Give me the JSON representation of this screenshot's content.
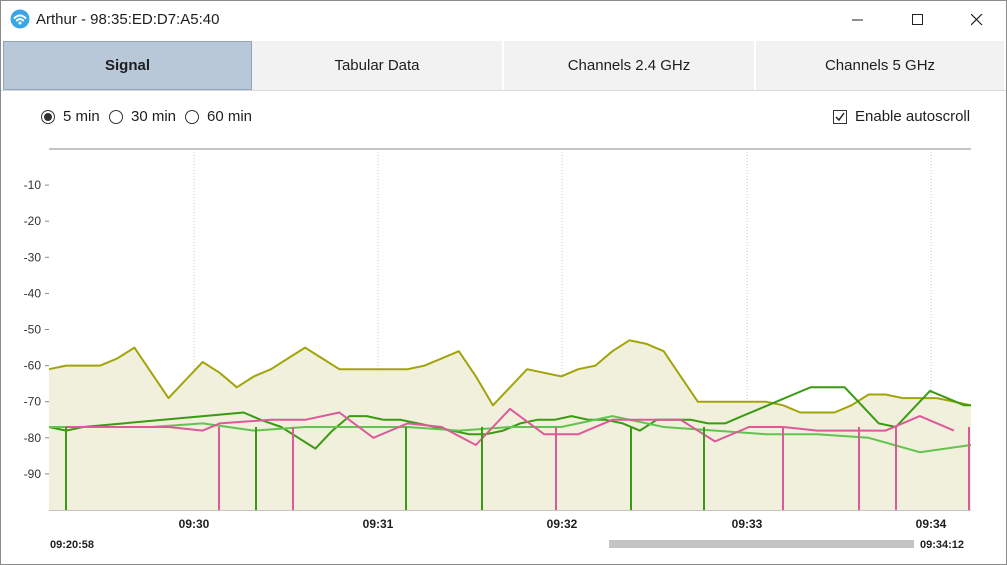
{
  "window": {
    "title": "Arthur - 98:35:ED:D7:A5:40",
    "icon": "wifi-app-icon"
  },
  "tabs": [
    {
      "label": "Signal",
      "active": true
    },
    {
      "label": "Tabular Data",
      "active": false
    },
    {
      "label": "Channels 2.4 GHz",
      "active": false
    },
    {
      "label": "Channels 5 GHz",
      "active": false
    }
  ],
  "time_options": [
    {
      "label": "5 min",
      "selected": true
    },
    {
      "label": "30 min",
      "selected": false
    },
    {
      "label": "60 min",
      "selected": false
    }
  ],
  "autoscroll": {
    "label": "Enable autoscroll",
    "checked": true
  },
  "range": {
    "start": "09:20:58",
    "end": "09:34:12"
  },
  "colors": {
    "tab_active": "#b8c8d8",
    "olive": "#a2a40a",
    "olive_fill": "#f0f0dc",
    "dark_green": "#3a9a12",
    "light_green": "#62c450",
    "pink": "#dc5a9a"
  },
  "chart_data": {
    "type": "line",
    "ylim": [
      -100,
      0
    ],
    "y_ticks": [
      "-10",
      "-20",
      "-30",
      "-40",
      "-50",
      "-60",
      "-70",
      "-80",
      "-90"
    ],
    "x_ticks": [
      "09:30",
      "09:31",
      "09:32",
      "09:33",
      "09:34"
    ],
    "series": [
      {
        "color": "#a2a40a",
        "fill": true,
        "x": [
          0,
          0.5,
          1,
          1.5,
          2,
          2.5,
          3,
          3.5,
          4,
          4.5,
          5,
          5.5,
          6,
          6.5,
          7,
          7.5,
          8,
          8.5,
          9,
          9.5,
          10,
          10.5,
          11,
          11.5,
          12,
          12.5,
          13,
          13.5,
          14,
          14.5,
          15,
          15.5,
          16,
          16.5,
          17,
          17.5,
          18,
          18.5,
          19,
          19.5,
          20,
          20.5,
          21,
          21.5,
          22,
          22.5,
          23,
          23.5,
          24,
          24.5,
          25,
          25.5,
          26,
          26.5,
          27
        ],
        "values": [
          -61,
          -60,
          -60,
          -60,
          -58,
          -55,
          -62,
          -69,
          -64,
          -59,
          -62,
          -66,
          -63,
          -61,
          -58,
          -55,
          -58,
          -61,
          -61,
          -61,
          -61,
          -61,
          -60,
          -58,
          -56,
          -63,
          -71,
          -66,
          -61,
          -62,
          -63,
          -61,
          -60,
          -56,
          -53,
          -54,
          -56,
          -63,
          -70,
          -70,
          -70,
          -70,
          -70,
          -71,
          -73,
          -73,
          -73,
          -71,
          -68,
          -68,
          -69,
          -69,
          -69,
          -70,
          -71
        ]
      },
      {
        "color": "#3a9a12",
        "x": [
          0,
          0.5,
          1,
          5.7,
          6.2,
          6.8,
          7.3,
          7.8,
          8.3,
          8.8,
          9.3,
          9.8,
          10.3,
          10.8,
          11.3,
          11.8,
          12.3,
          12.8,
          13.3,
          13.8,
          14.3,
          14.8,
          15.3,
          15.8,
          16.3,
          16.8,
          17.3,
          17.8,
          18.3,
          18.8,
          19.3,
          19.8,
          20.3,
          20.8,
          21.3,
          21.8,
          22.3,
          22.8,
          23.3,
          23.8,
          24.3,
          24.8,
          25.3,
          25.8,
          26.3,
          26.8,
          27
        ],
        "values": [
          -77,
          -78,
          -77,
          -73,
          -75,
          -77,
          -80,
          -83,
          -78,
          -74,
          -74,
          -75,
          -75,
          -76,
          -77,
          -78,
          -79,
          -79,
          -78,
          -76,
          -75,
          -75,
          -74,
          -75,
          -75,
          -76,
          -78,
          -75,
          -75,
          -75,
          -76,
          -76,
          -74,
          -72,
          -70,
          -68,
          -66,
          -66,
          -66,
          -71,
          -76,
          -77,
          -72,
          -67,
          -69,
          -71,
          -71
        ]
      },
      {
        "color": "#62c450",
        "x": [
          0,
          1.5,
          3,
          4.5,
          6,
          7.5,
          9,
          10.5,
          12,
          13.5,
          15,
          16.5,
          18,
          19.5,
          21,
          22.5,
          24,
          25.5,
          27
        ],
        "values": [
          -77,
          -77,
          -77,
          -76,
          -78,
          -77,
          -77,
          -77,
          -78,
          -77,
          -77,
          -74,
          -77,
          -78,
          -79,
          -79,
          -80,
          -84,
          -82
        ]
      },
      {
        "color": "#dc5a9a",
        "x": [
          0.5,
          2,
          3.5,
          4.5,
          5,
          6.5,
          7.5,
          8.5,
          9.5,
          10.5,
          11.5,
          12.5,
          13.5,
          14.5,
          15.5,
          16.5,
          17.5,
          18.5,
          19.5,
          20.5,
          21.5,
          22.5,
          23.5,
          24.5,
          25.5,
          26.5
        ],
        "values": [
          -77,
          -77,
          -77,
          -78,
          -76,
          -75,
          -75,
          -73,
          -80,
          -76,
          -77,
          -82,
          -72,
          -79,
          -79,
          -75,
          -75,
          -75,
          -81,
          -77,
          -77,
          -78,
          -78,
          -78,
          -74,
          -78
        ]
      }
    ]
  }
}
